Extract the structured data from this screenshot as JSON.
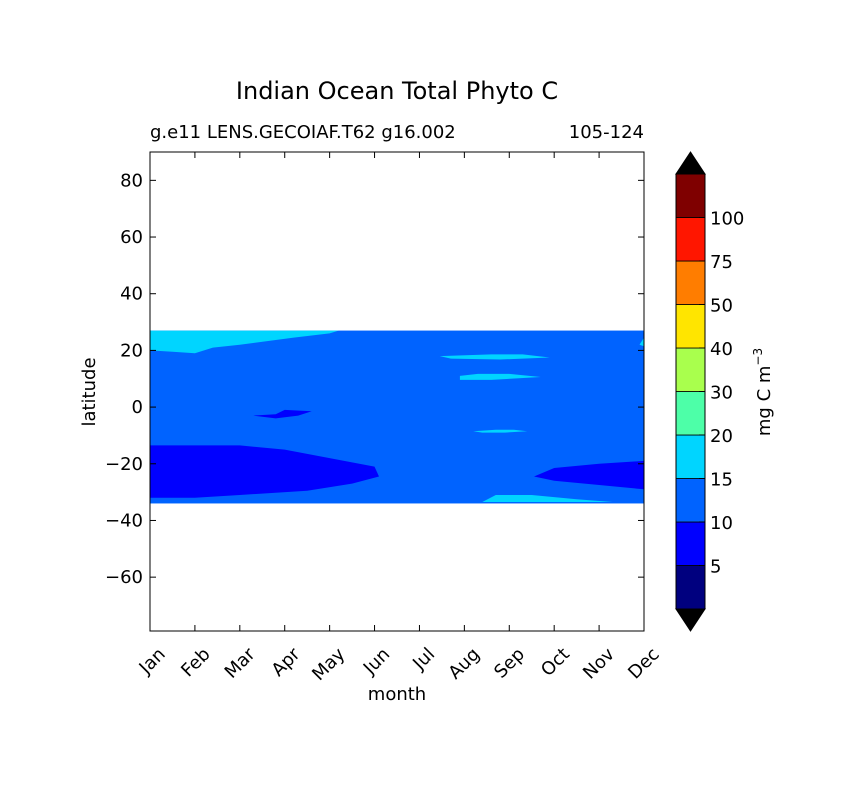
{
  "chart_data": {
    "type": "heatmap",
    "title": "Indian Ocean Total Phyto C",
    "subtitle_left": "g.e11 LENS.GECOIAF.T62 g16.002",
    "subtitle_right": "105-124",
    "xlabel": "month",
    "ylabel": "latitude",
    "x_categories": [
      "Jan",
      "Feb",
      "Mar",
      "Apr",
      "May",
      "Jun",
      "Jul",
      "Aug",
      "Sep",
      "Oct",
      "Nov",
      "Dec"
    ],
    "xlim": [
      1,
      12
    ],
    "ylim": [
      -79,
      90
    ],
    "y_ticks": [
      80,
      60,
      40,
      20,
      0,
      -20,
      -40,
      -60
    ],
    "grid": false,
    "data_extent": {
      "lat_min": -34,
      "lat_max": 27
    },
    "colorbar": {
      "label": "mg C m",
      "label_sup": "−3",
      "extend": "both",
      "tick_labels": [
        "5",
        "10",
        "15",
        "20",
        "30",
        "40",
        "50",
        "75",
        "100"
      ],
      "levels": [
        0,
        5,
        10,
        15,
        20,
        30,
        40,
        50,
        75,
        100,
        125
      ],
      "colors": [
        "#00007f",
        "#0000ff",
        "#0063ff",
        "#00d5ff",
        "#4dffa8",
        "#a9ff4d",
        "#ffe500",
        "#ff7d00",
        "#ff1600",
        "#7f0000"
      ],
      "under_color": "#000000",
      "over_color": "#000000"
    },
    "background_level_color": "#0063ff",
    "regions": [
      {
        "level": "5-10",
        "color": "#0000ff",
        "points": [
          [
            1,
            -13.5
          ],
          [
            3,
            -13.5
          ],
          [
            4,
            -15
          ],
          [
            5,
            -18
          ],
          [
            6,
            -21
          ],
          [
            6.1,
            -24.5
          ],
          [
            5.5,
            -27
          ],
          [
            4.5,
            -29.5
          ],
          [
            3,
            -31
          ],
          [
            2,
            -32
          ],
          [
            1,
            -32
          ]
        ]
      },
      {
        "level": "5-10",
        "color": "#0000ff",
        "points": [
          [
            12,
            -19
          ],
          [
            11,
            -20
          ],
          [
            10,
            -21.5
          ],
          [
            9.55,
            -24.5
          ],
          [
            10,
            -26
          ],
          [
            11,
            -27.5
          ],
          [
            12,
            -29
          ]
        ]
      },
      {
        "level": "5-10",
        "color": "#0000ff",
        "points": [
          [
            3.3,
            -3
          ],
          [
            3.8,
            -2.5
          ],
          [
            4,
            -1
          ],
          [
            4.6,
            -1.5
          ],
          [
            4.3,
            -3
          ],
          [
            3.8,
            -4
          ]
        ]
      },
      {
        "level": "15-20",
        "color": "#00d5ff",
        "points": [
          [
            1,
            27
          ],
          [
            5.2,
            27
          ],
          [
            5,
            26
          ],
          [
            4.2,
            24.5
          ],
          [
            3,
            22
          ],
          [
            2.4,
            21
          ],
          [
            2,
            19
          ],
          [
            1.5,
            19.5
          ],
          [
            1,
            20
          ]
        ]
      },
      {
        "level": "15-20",
        "color": "#00d5ff",
        "points": [
          [
            7.9,
            11
          ],
          [
            8.3,
            11.7
          ],
          [
            9,
            11.7
          ],
          [
            9.7,
            10.6
          ],
          [
            8.6,
            9.6
          ],
          [
            7.9,
            9.6
          ]
        ]
      },
      {
        "level": "15-20",
        "color": "#00d5ff",
        "points": [
          [
            7.45,
            18
          ],
          [
            8.6,
            18.6
          ],
          [
            9.3,
            18.6
          ],
          [
            9.9,
            17.5
          ],
          [
            8.8,
            16.8
          ],
          [
            7.7,
            17.1
          ]
        ]
      },
      {
        "level": "15-20",
        "color": "#00d5ff",
        "points": [
          [
            8.2,
            -8.5
          ],
          [
            8.7,
            -8
          ],
          [
            9.1,
            -8
          ],
          [
            9.4,
            -8.5
          ],
          [
            8.9,
            -9
          ],
          [
            8.4,
            -9
          ]
        ]
      },
      {
        "level": "15-20",
        "color": "#00d5ff",
        "points": [
          [
            8.4,
            -33.5
          ],
          [
            8.7,
            -31
          ],
          [
            9.5,
            -31
          ],
          [
            10.5,
            -32.5
          ],
          [
            11.3,
            -33.5
          ]
        ]
      },
      {
        "level": "15-20",
        "color": "#00d5ff",
        "points": [
          [
            11.9,
            22
          ],
          [
            12,
            24.5
          ],
          [
            12,
            21.5
          ]
        ]
      }
    ]
  }
}
